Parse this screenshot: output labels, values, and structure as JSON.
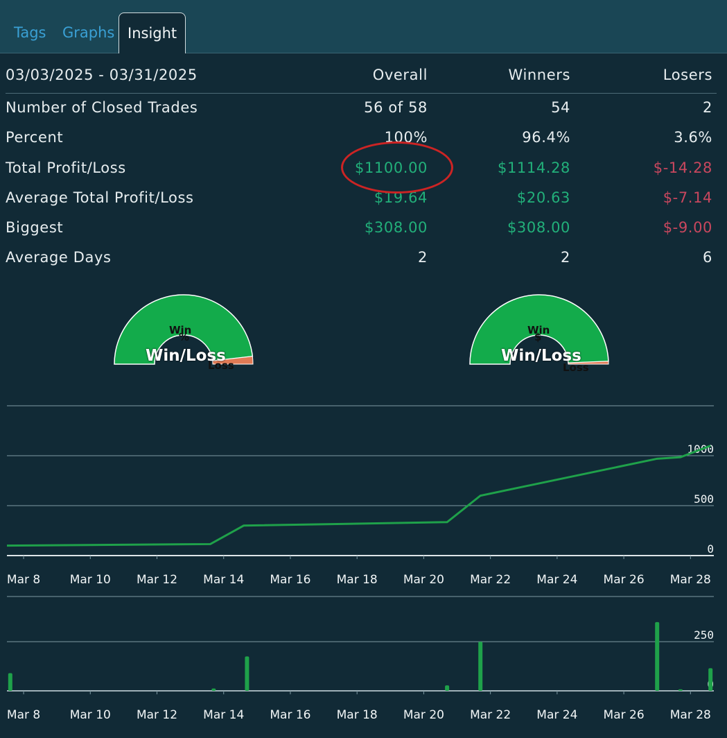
{
  "tabs": [
    {
      "label": "Tags",
      "active": false
    },
    {
      "label": "Graphs",
      "active": false
    },
    {
      "label": "Insight",
      "active": true
    }
  ],
  "stats": {
    "date_range": "03/03/2025 - 03/31/2025",
    "headers": {
      "overall": "Overall",
      "winners": "Winners",
      "losers": "Losers"
    },
    "rows": [
      {
        "label": "Number of Closed Trades",
        "overall": "56 of 58",
        "winners": "54",
        "losers": "2"
      },
      {
        "label": "Percent",
        "overall": "100%",
        "winners": "96.4%",
        "losers": "3.6%"
      },
      {
        "label": "Total Profit/Loss",
        "overall": "$1100.00",
        "winners": "$1114.28",
        "losers": "$-14.28"
      },
      {
        "label": "Average Total Profit/Loss",
        "overall": "$19.64",
        "winners": "$20.63",
        "losers": "$-7.14"
      },
      {
        "label": "Biggest",
        "overall": "$308.00",
        "winners": "$308.00",
        "losers": "$-9.00"
      },
      {
        "label": "Average Days",
        "overall": "2",
        "winners": "2",
        "losers": "6"
      }
    ],
    "colors": {
      "positive": "#22b07a",
      "negative": "#c9475e",
      "highlight_circle": "#cc2424"
    }
  },
  "gauges": [
    {
      "symbol": "%",
      "title": "Win/Loss",
      "win_label": "Win",
      "loss_label": "Loss",
      "win_fraction": 0.964,
      "win_color": "#13ab4b",
      "loss_color": "#e07a55"
    },
    {
      "symbol": "$",
      "title": "Win/Loss",
      "win_label": "Win",
      "loss_label": "Loss",
      "win_fraction": 0.987,
      "win_color": "#13ab4b",
      "loss_color": "#e07a55"
    }
  ],
  "chart_data": [
    {
      "type": "line",
      "x_tick_labels": [
        "Mar 8",
        "Mar 10",
        "Mar 12",
        "Mar 14",
        "Mar 16",
        "Mar 18",
        "Mar 20",
        "Mar 22",
        "Mar 24",
        "Mar 26",
        "Mar 28"
      ],
      "y_tick_labels": [
        "0",
        "500",
        "1000"
      ],
      "ylim": [
        0,
        1500
      ],
      "xlim": [
        7.5,
        28.7
      ],
      "series": [
        {
          "color": "#1fa14a",
          "points": [
            [
              7.5,
              100
            ],
            [
              13.6,
              115
            ],
            [
              14.6,
              300
            ],
            [
              20.7,
              335
            ],
            [
              21.7,
              600
            ],
            [
              27.0,
              970
            ],
            [
              27.7,
              985
            ],
            [
              28.6,
              1100
            ]
          ]
        }
      ],
      "grid": true
    },
    {
      "type": "bar",
      "x_tick_labels": [
        "Mar 8",
        "Mar 10",
        "Mar 12",
        "Mar 14",
        "Mar 16",
        "Mar 18",
        "Mar 20",
        "Mar 22",
        "Mar 24",
        "Mar 26",
        "Mar 28"
      ],
      "y_tick_labels": [
        "0",
        "250"
      ],
      "ylim": [
        0,
        480
      ],
      "xlim": [
        7.5,
        28.7
      ],
      "bars": [
        {
          "x": 7.6,
          "value": 90
        },
        {
          "x": 13.7,
          "value": 12
        },
        {
          "x": 14.7,
          "value": 175
        },
        {
          "x": 20.7,
          "value": 28
        },
        {
          "x": 21.7,
          "value": 250
        },
        {
          "x": 27.0,
          "value": 350
        },
        {
          "x": 27.7,
          "value": 8
        },
        {
          "x": 28.6,
          "value": 115
        }
      ],
      "bar_color": "#1fa14a",
      "grid": true
    }
  ]
}
